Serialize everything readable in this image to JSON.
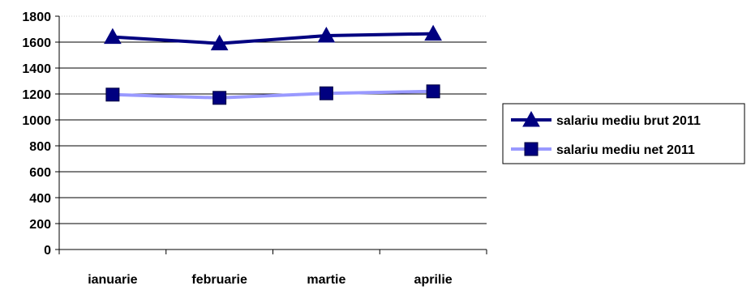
{
  "chart_data": {
    "type": "line",
    "categories": [
      "ianuarie",
      "februarie",
      "martie",
      "aprilie"
    ],
    "series": [
      {
        "name": "salariu mediu brut 2011",
        "values": [
          1640,
          1590,
          1650,
          1665
        ],
        "color": "#000080",
        "marker": "triangle"
      },
      {
        "name": "salariu mediu net 2011",
        "values": [
          1195,
          1170,
          1205,
          1220
        ],
        "color": "#9999FF",
        "marker_color": "#000080",
        "marker": "square"
      }
    ],
    "title": "",
    "xlabel": "",
    "ylabel": "",
    "ylim": [
      0,
      1800
    ],
    "yticks": [
      0,
      200,
      400,
      600,
      800,
      1000,
      1200,
      1400,
      1600,
      1800
    ],
    "grid": true,
    "legend_position": "right"
  }
}
